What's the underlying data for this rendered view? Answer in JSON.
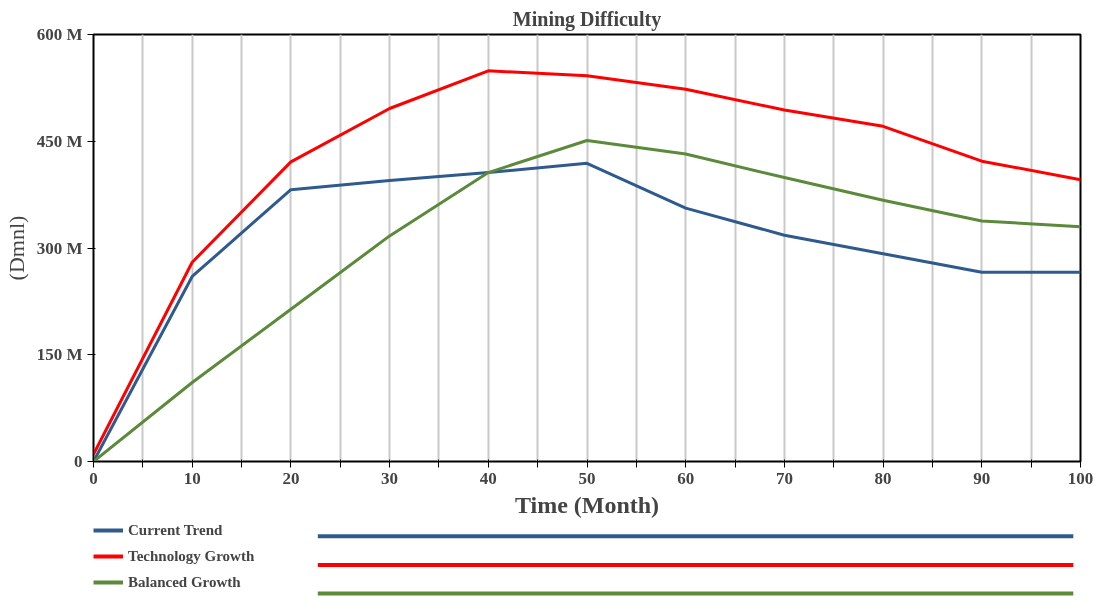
{
  "chart_data": {
    "type": "line",
    "title": "Mining Difficulty",
    "xlabel": "Time (Month)",
    "ylabel": "(Dmnl)",
    "x": [
      0,
      10,
      20,
      30,
      40,
      50,
      60,
      70,
      80,
      90,
      100
    ],
    "series": [
      {
        "name": "Current Trend",
        "color": "#2e5a8e",
        "values": [
          0,
          260,
          382,
          395,
          406,
          419,
          356,
          318,
          292,
          266,
          266
        ]
      },
      {
        "name": "Technology Growth",
        "color": "#ff0000",
        "values": [
          10,
          280,
          421,
          496,
          549,
          542,
          523,
          494,
          471,
          422,
          396
        ]
      },
      {
        "name": "Balanced Growth",
        "color": "#5b8a3a",
        "values": [
          0,
          111,
          214,
          317,
          406,
          451,
          432,
          399,
          367,
          338,
          330
        ]
      }
    ],
    "xlim": [
      0,
      100
    ],
    "ylim": [
      0,
      600
    ],
    "xticks": [
      0,
      {
        "value": 5,
        "label": null
      },
      10,
      {
        "value": 15,
        "label": null
      },
      20,
      {
        "value": 25,
        "label": null
      },
      30,
      {
        "value": 35,
        "label": null
      },
      40,
      {
        "value": 45,
        "label": null
      },
      50,
      {
        "value": 55,
        "label": null
      },
      60,
      {
        "value": 65,
        "label": null
      },
      70,
      {
        "value": 75,
        "label": null
      },
      80,
      {
        "value": 85,
        "label": null
      },
      90,
      {
        "value": 95,
        "label": null
      },
      100
    ],
    "yticks": [
      {
        "value": 0,
        "label": "0"
      },
      {
        "value": 150,
        "label": "150 M"
      },
      {
        "value": 300,
        "label": "300 M"
      },
      {
        "value": 450,
        "label": "450 M"
      },
      {
        "value": 600,
        "label": "600 M"
      }
    ],
    "grid": "x",
    "legend": "bottom",
    "line_style": "solid"
  }
}
